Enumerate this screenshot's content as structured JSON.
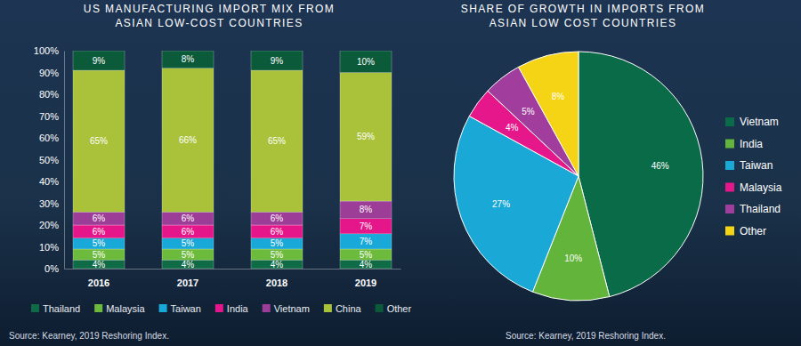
{
  "chart_data": [
    {
      "type": "bar",
      "stacked": true,
      "title": "US MANUFACTURING IMPORT MIX FROM ASIAN LOW-COST COUNTRIES",
      "categories": [
        "2016",
        "2017",
        "2018",
        "2019"
      ],
      "series": [
        {
          "name": "Thailand",
          "color": "#0e6b45",
          "values": [
            4,
            4,
            4,
            4
          ],
          "value_labels": [
            "4%",
            "4%",
            "4%",
            "4%"
          ]
        },
        {
          "name": "Malaysia",
          "color": "#6cbb3c",
          "values": [
            5,
            5,
            5,
            5
          ],
          "value_labels": [
            "5%",
            "5%",
            "5%",
            "5%"
          ]
        },
        {
          "name": "Taiwan",
          "color": "#19a9d9",
          "values": [
            5,
            5,
            5,
            7
          ],
          "value_labels": [
            "5%",
            "5%",
            "5%",
            "7%"
          ]
        },
        {
          "name": "India",
          "color": "#e5168a",
          "values": [
            6,
            6,
            6,
            7
          ],
          "value_labels": [
            "6%",
            "6%",
            "6%",
            "7%"
          ]
        },
        {
          "name": "Vietnam",
          "color": "#9c3d97",
          "values": [
            6,
            6,
            6,
            8
          ],
          "value_labels": [
            "6%",
            "6%",
            "6%",
            "8%"
          ]
        },
        {
          "name": "China",
          "color": "#a9c23a",
          "values": [
            65,
            66,
            65,
            59
          ],
          "value_labels": [
            "65%",
            "66%",
            "65%",
            "59%"
          ]
        },
        {
          "name": "Other",
          "color": "#0b5a3a",
          "values": [
            9,
            8,
            9,
            10
          ],
          "value_labels": [
            "9%",
            "8%",
            "9%",
            "10%"
          ]
        }
      ],
      "ylim": [
        0,
        100
      ],
      "yticks": [
        {
          "value": 0,
          "label": "0%"
        },
        {
          "value": 10,
          "label": "10%"
        },
        {
          "value": 20,
          "label": "20%"
        },
        {
          "value": 30,
          "label": "30%"
        },
        {
          "value": 40,
          "label": "40%"
        },
        {
          "value": 50,
          "label": "50%"
        },
        {
          "value": 60,
          "label": "60%"
        },
        {
          "value": 70,
          "label": "70%"
        },
        {
          "value": 80,
          "label": "80%"
        },
        {
          "value": 90,
          "label": "90%"
        },
        {
          "value": 100,
          "label": "100%"
        }
      ],
      "data_labels": true,
      "grid": false,
      "legend": "bottom",
      "source": "Source: Kearney, 2019 Reshoring Index."
    },
    {
      "type": "pie",
      "title": "SHARE OF GROWTH IN IMPORTS FROM ASIAN LOW COST COUNTRIES",
      "categories": [
        "Vietnam",
        "India",
        "Taiwan",
        "Malaysia",
        "Thailand",
        "Other"
      ],
      "values": [
        46,
        10,
        27,
        4,
        5,
        8
      ],
      "value_labels": [
        "46%",
        "10%",
        "27%",
        "4%",
        "5%",
        "8%"
      ],
      "colors": [
        "#0a6b48",
        "#62b43a",
        "#1aa9d6",
        "#e6178b",
        "#a13d9c",
        "#f5d415"
      ],
      "data_labels": true,
      "legend": "right",
      "source": "Source: Kearney, 2019 Reshoring Index."
    }
  ]
}
